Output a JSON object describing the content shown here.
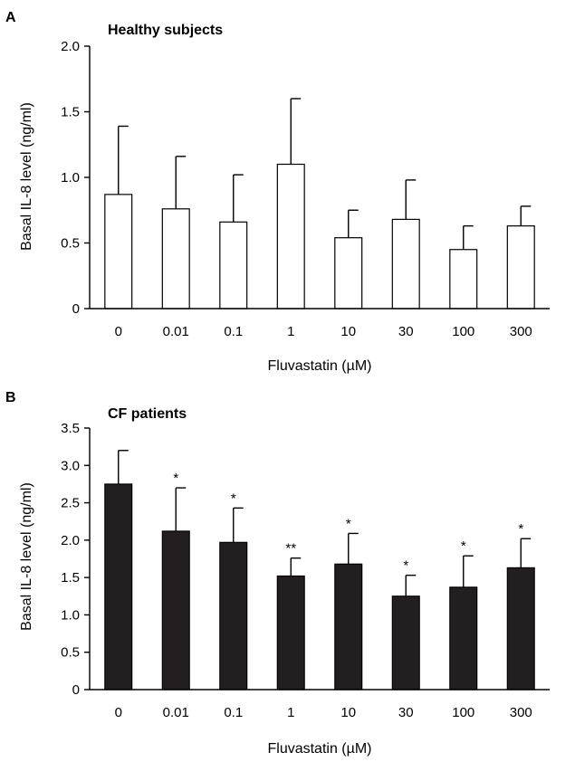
{
  "chart_data": [
    {
      "type": "bar",
      "panel_label": "A",
      "title": "Healthy subjects",
      "xlabel": "Fluvastatin (µM)",
      "ylabel": "Basal IL-8 level (ng/ml)",
      "ylim": [
        0,
        2.0
      ],
      "yticks": [
        "0",
        "0.5",
        "1.0",
        "1.5",
        "2.0"
      ],
      "categories": [
        "0",
        "0.01",
        "0.1",
        "1",
        "10",
        "30",
        "100",
        "300"
      ],
      "values": [
        0.87,
        0.76,
        0.66,
        1.1,
        0.54,
        0.68,
        0.45,
        0.63
      ],
      "error_upper": [
        1.39,
        1.16,
        1.02,
        1.6,
        0.75,
        0.98,
        0.63,
        0.78
      ],
      "significance": [
        "",
        "",
        "",
        "",
        "",
        "",
        "",
        ""
      ],
      "bar_fill": "#ffffff"
    },
    {
      "type": "bar",
      "panel_label": "B",
      "title": "CF patients",
      "xlabel": "Fluvastatin (µM)",
      "ylabel": "Basal IL-8 level (ng/ml)",
      "ylim": [
        0,
        3.5
      ],
      "yticks": [
        "0",
        "0.5",
        "1.0",
        "1.5",
        "2.0",
        "2.5",
        "3.0",
        "3.5"
      ],
      "categories": [
        "0",
        "0.01",
        "0.1",
        "1",
        "10",
        "30",
        "100",
        "300"
      ],
      "values": [
        2.75,
        2.12,
        1.97,
        1.52,
        1.68,
        1.25,
        1.37,
        1.63
      ],
      "error_upper": [
        3.2,
        2.7,
        2.43,
        1.76,
        2.09,
        1.53,
        1.79,
        2.02
      ],
      "significance": [
        "",
        "*",
        "*",
        "**",
        "*",
        "*",
        "*",
        "*"
      ],
      "bar_fill": "#231f20"
    }
  ]
}
